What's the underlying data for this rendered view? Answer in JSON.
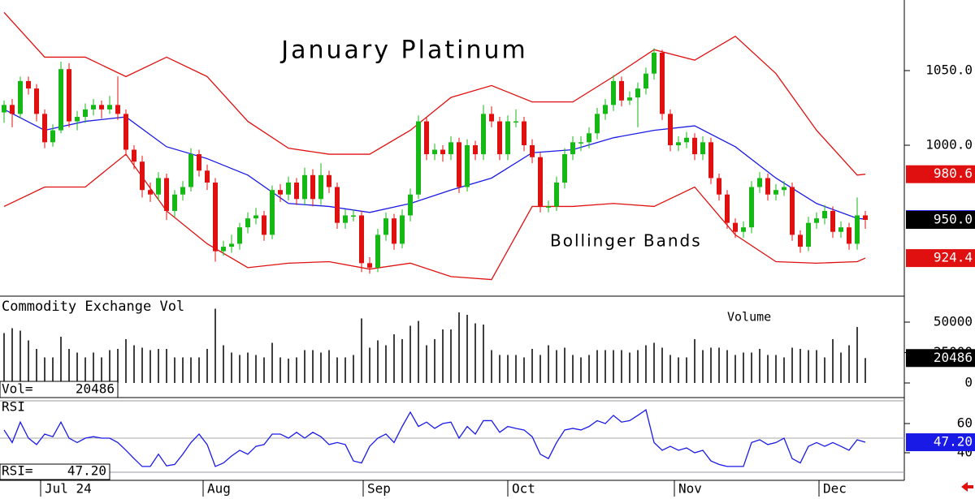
{
  "chart_data": [
    {
      "type": "candlestick",
      "title": "January Platinum",
      "annotation": "Bollinger Bands",
      "up_color": "#16b816",
      "down_color": "#e01010",
      "xlim": [
        -0.5,
        110.5
      ],
      "ylim": [
        898.9,
        1097.3
      ],
      "yticks": [
        {
          "value": 1000,
          "label": "1000.0"
        },
        {
          "value": 1050,
          "label": "1050.0"
        }
      ],
      "ohlc": [
        [
          1022,
          1030,
          1015,
          1027
        ],
        [
          1027,
          1031,
          1012,
          1021
        ],
        [
          1021,
          1046,
          1018,
          1043
        ],
        [
          1043,
          1046,
          1034,
          1038
        ],
        [
          1038,
          1041,
          1016,
          1021
        ],
        [
          1021,
          1024,
          998,
          1002
        ],
        [
          1002,
          1014,
          999,
          1010
        ],
        [
          1010,
          1056,
          1008,
          1051
        ],
        [
          1051,
          1055,
          1012,
          1016
        ],
        [
          1016,
          1023,
          1010,
          1019
        ],
        [
          1019,
          1028,
          1015,
          1024
        ],
        [
          1024,
          1031,
          1020,
          1027
        ],
        [
          1027,
          1030,
          1018,
          1024
        ],
        [
          1024,
          1033,
          1021,
          1027
        ],
        [
          1027,
          1046,
          1017,
          1021
        ],
        [
          1021,
          1024,
          993,
          997
        ],
        [
          997,
          1000,
          984,
          989
        ],
        [
          989,
          993,
          965,
          970
        ],
        [
          970,
          975,
          962,
          967
        ],
        [
          967,
          982,
          963,
          978
        ],
        [
          978,
          981,
          950,
          956
        ],
        [
          956,
          970,
          952,
          967
        ],
        [
          967,
          976,
          963,
          972
        ],
        [
          972,
          998,
          969,
          994
        ],
        [
          994,
          997,
          979,
          983
        ],
        [
          983,
          987,
          970,
          975
        ],
        [
          975,
          978,
          922,
          929
        ],
        [
          929,
          936,
          926,
          932
        ],
        [
          932,
          940,
          928,
          934
        ],
        [
          934,
          948,
          930,
          945
        ],
        [
          945,
          955,
          941,
          951
        ],
        [
          951,
          958,
          947,
          953
        ],
        [
          953,
          956,
          936,
          940
        ],
        [
          940,
          973,
          937,
          970
        ],
        [
          970,
          974,
          962,
          967
        ],
        [
          967,
          979,
          963,
          975
        ],
        [
          975,
          978,
          960,
          964
        ],
        [
          964,
          985,
          960,
          980
        ],
        [
          980,
          984,
          959,
          964
        ],
        [
          964,
          988,
          960,
          980
        ],
        [
          980,
          983,
          968,
          972
        ],
        [
          972,
          975,
          944,
          948
        ],
        [
          948,
          957,
          944,
          953
        ],
        [
          953,
          957,
          949,
          953
        ],
        [
          953,
          956,
          915,
          921
        ],
        [
          921,
          925,
          914,
          918
        ],
        [
          918,
          944,
          915,
          940
        ],
        [
          940,
          955,
          936,
          951
        ],
        [
          951,
          954,
          930,
          934
        ],
        [
          934,
          957,
          931,
          953
        ],
        [
          953,
          971,
          949,
          967
        ],
        [
          967,
          1020,
          964,
          1016
        ],
        [
          1016,
          1019,
          990,
          994
        ],
        [
          994,
          1001,
          990,
          997
        ],
        [
          997,
          1000,
          989,
          994
        ],
        [
          994,
          1006,
          990,
          1002
        ],
        [
          1002,
          1005,
          968,
          972
        ],
        [
          972,
          1004,
          969,
          1000
        ],
        [
          1000,
          1003,
          990,
          994
        ],
        [
          994,
          1027,
          990,
          1021
        ],
        [
          1021,
          1026,
          1012,
          1016
        ],
        [
          1016,
          1019,
          990,
          994
        ],
        [
          994,
          1020,
          990,
          1016
        ],
        [
          1016,
          1024,
          1012,
          1016
        ],
        [
          1016,
          1019,
          996,
          1000
        ],
        [
          1000,
          1004,
          988,
          992
        ],
        [
          992,
          995,
          955,
          959
        ],
        [
          959,
          963,
          955,
          959
        ],
        [
          959,
          979,
          956,
          975
        ],
        [
          975,
          998,
          971,
          994
        ],
        [
          994,
          1006,
          990,
          1002
        ],
        [
          1002,
          1006,
          996,
          1002
        ],
        [
          1002,
          1012,
          998,
          1008
        ],
        [
          1008,
          1025,
          1004,
          1021
        ],
        [
          1021,
          1031,
          1017,
          1027
        ],
        [
          1027,
          1047,
          1023,
          1043
        ],
        [
          1043,
          1046,
          1026,
          1030
        ],
        [
          1030,
          1036,
          1027,
          1032
        ],
        [
          1032,
          1042,
          1012,
          1038
        ],
        [
          1038,
          1052,
          1034,
          1048
        ],
        [
          1048,
          1065,
          1044,
          1062
        ],
        [
          1062,
          1064,
          1017,
          1021
        ],
        [
          1021,
          1024,
          996,
          1000
        ],
        [
          1000,
          1006,
          996,
          1002
        ],
        [
          1002,
          1009,
          998,
          1005
        ],
        [
          1005,
          1008,
          990,
          994
        ],
        [
          994,
          1006,
          990,
          1002
        ],
        [
          1002,
          1005,
          974,
          978
        ],
        [
          978,
          981,
          963,
          967
        ],
        [
          967,
          970,
          944,
          948
        ],
        [
          948,
          951,
          938,
          942
        ],
        [
          942,
          949,
          938,
          945
        ],
        [
          945,
          976,
          941,
          972
        ],
        [
          972,
          982,
          968,
          978
        ],
        [
          978,
          981,
          963,
          967
        ],
        [
          967,
          974,
          963,
          970
        ],
        [
          970,
          976,
          966,
          972
        ],
        [
          972,
          975,
          936,
          940
        ],
        [
          940,
          943,
          928,
          932
        ],
        [
          932,
          952,
          929,
          948
        ],
        [
          948,
          955,
          944,
          951
        ],
        [
          951,
          960,
          947,
          956
        ],
        [
          956,
          959,
          938,
          942
        ],
        [
          942,
          949,
          938,
          945
        ],
        [
          945,
          948,
          930,
          934
        ],
        [
          934,
          965,
          930,
          953
        ],
        [
          953,
          956,
          944,
          950
        ]
      ],
      "last_close_label": "950.0",
      "last_close_color": "#000000",
      "band_x": [
        0,
        5,
        10,
        15,
        20,
        25,
        30,
        35,
        40,
        45,
        50,
        55,
        60,
        65,
        70,
        75,
        80,
        85,
        90,
        95,
        100,
        105,
        106
      ],
      "bands": [
        {
          "color": "#1a1ae6",
          "values": [
            1024,
            1010,
            1016,
            1019,
            999,
            991,
            980,
            961,
            959,
            955,
            961,
            970,
            978,
            995,
            997,
            1005,
            1010,
            1013,
            999,
            978,
            961,
            951,
            950.5
          ]
        },
        {
          "color": "#e01010",
          "values": [
            1089,
            1059,
            1059,
            1046,
            1059,
            1046,
            1016,
            998,
            994,
            994,
            1010,
            1032,
            1040,
            1029,
            1029,
            1046,
            1064,
            1057,
            1073,
            1048,
            1010,
            980,
            980.6
          ]
        },
        {
          "color": "#e01010",
          "values": [
            959,
            972,
            972,
            994,
            956,
            934,
            918,
            921,
            922,
            917,
            921,
            912,
            910,
            959,
            959,
            961,
            959,
            972,
            940,
            922,
            921,
            922,
            924.4
          ]
        }
      ]
    },
    {
      "type": "bar",
      "title": "Commodity Exchange Vol",
      "annotation": "Volume",
      "readout_label": "Vol=",
      "color": "#000000",
      "xlim": [
        -0.5,
        110.5
      ],
      "ylim": [
        -12000,
        70667
      ],
      "yticks": [
        0,
        25000,
        50000
      ],
      "values": [
        41000,
        45000,
        43000,
        35000,
        28000,
        21000,
        21000,
        38000,
        28000,
        25000,
        21000,
        25000,
        21000,
        27000,
        28000,
        36000,
        31000,
        29000,
        27000,
        28000,
        28000,
        21000,
        21000,
        21000,
        21000,
        28000,
        61000,
        31000,
        25000,
        23000,
        25000,
        23000,
        21000,
        33000,
        21000,
        20000,
        21000,
        27000,
        27000,
        25000,
        27000,
        21000,
        21000,
        23000,
        53000,
        29000,
        35000,
        31000,
        40000,
        36000,
        47000,
        51000,
        31000,
        36000,
        44000,
        44000,
        58000,
        56000,
        49000,
        48000,
        27000,
        23000,
        23000,
        23000,
        21000,
        28000,
        23000,
        31000,
        27000,
        29000,
        23000,
        21000,
        23000,
        27000,
        27000,
        27000,
        27000,
        25000,
        27000,
        31000,
        33000,
        29000,
        23000,
        21000,
        21000,
        36000,
        27000,
        29000,
        29000,
        27000,
        23000,
        25000,
        25000,
        28000,
        23000,
        23000,
        21000,
        29000,
        28000,
        27000,
        27000,
        21000,
        36000,
        25000,
        31000,
        46000,
        20486
      ]
    },
    {
      "type": "line",
      "title": "RSI",
      "readout_label": "RSI=",
      "last_value_label": "47.20",
      "color": "#1a1ae6",
      "xlim": [
        -0.5,
        110.5
      ],
      "ylim": [
        21.1,
        77.8
      ],
      "yticks": [
        40,
        60
      ],
      "reference_lines": [
        50
      ],
      "xticks": [
        {
          "value": 4.5,
          "label": "Jul 24"
        },
        {
          "value": 24.5,
          "label": "Aug"
        },
        {
          "value": 44.2,
          "label": "Sep"
        },
        {
          "value": 62,
          "label": "Oct"
        },
        {
          "value": 82.5,
          "label": "Nov"
        },
        {
          "value": 100.3,
          "label": "Dec"
        }
      ],
      "values": [
        55.6,
        47,
        61,
        50,
        45.6,
        52.8,
        51,
        61,
        50,
        47,
        50,
        51,
        50,
        50,
        47,
        41.7,
        36,
        30.6,
        30.6,
        39,
        31,
        32,
        39,
        47,
        52.8,
        45.6,
        30.6,
        33,
        37.8,
        41.7,
        39,
        44.4,
        45.6,
        52.8,
        52.8,
        50,
        54,
        50,
        54,
        51,
        45.6,
        47,
        45.6,
        34.4,
        33,
        44.4,
        50,
        52.8,
        47,
        58,
        67.8,
        58,
        61,
        56.7,
        60,
        61,
        50,
        58,
        52.8,
        62,
        62,
        54,
        58,
        56.7,
        55.6,
        51,
        39,
        36,
        47,
        55.6,
        56.7,
        55.6,
        58,
        62,
        60,
        65.6,
        61,
        62,
        65.6,
        69.4,
        47,
        41.7,
        44.4,
        41.7,
        43.3,
        40,
        41.7,
        34.4,
        32,
        30.6,
        30.6,
        30.6,
        47,
        48.9,
        45.6,
        47,
        50,
        36,
        33,
        44.4,
        47,
        44.4,
        47,
        44.4,
        41.7,
        48.9,
        47.2
      ]
    }
  ]
}
